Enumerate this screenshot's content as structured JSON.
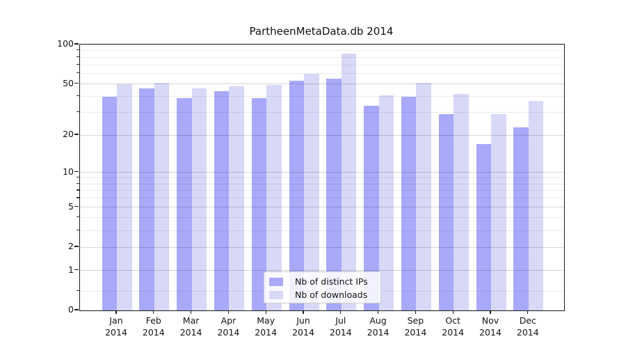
{
  "background": "#ffffff",
  "chart_data": {
    "type": "bar",
    "title": "PartheenMetaData.db 2014",
    "categories": [
      {
        "month": "Jan",
        "year": "2014"
      },
      {
        "month": "Feb",
        "year": "2014"
      },
      {
        "month": "Mar",
        "year": "2014"
      },
      {
        "month": "Apr",
        "year": "2014"
      },
      {
        "month": "May",
        "year": "2014"
      },
      {
        "month": "Jun",
        "year": "2014"
      },
      {
        "month": "Jul",
        "year": "2014"
      },
      {
        "month": "Aug",
        "year": "2014"
      },
      {
        "month": "Sep",
        "year": "2014"
      },
      {
        "month": "Oct",
        "year": "2014"
      },
      {
        "month": "Nov",
        "year": "2014"
      },
      {
        "month": "Dec",
        "year": "2014"
      }
    ],
    "series": [
      {
        "name": "Nb of distinct IPs",
        "color": "#a9a9f9",
        "values": [
          40,
          46,
          39,
          44,
          39,
          53,
          55,
          34,
          40,
          29,
          17,
          23
        ]
      },
      {
        "name": "Nb of downloads",
        "color": "#d8d8f7",
        "values": [
          50,
          51,
          46,
          48,
          49,
          60,
          85,
          41,
          51,
          42,
          29,
          37
        ]
      }
    ],
    "y_scale": "log1p",
    "ylim": [
      0,
      100
    ],
    "y_ticks": [
      0,
      1,
      2,
      5,
      10,
      20,
      50,
      100
    ],
    "minor_gridlines": [
      0.4,
      3,
      4,
      6,
      7,
      8,
      9,
      30,
      40,
      60,
      70,
      80,
      90
    ],
    "grid": true,
    "legend_position": "lower center",
    "spine_color": "#1a1a1a"
  }
}
